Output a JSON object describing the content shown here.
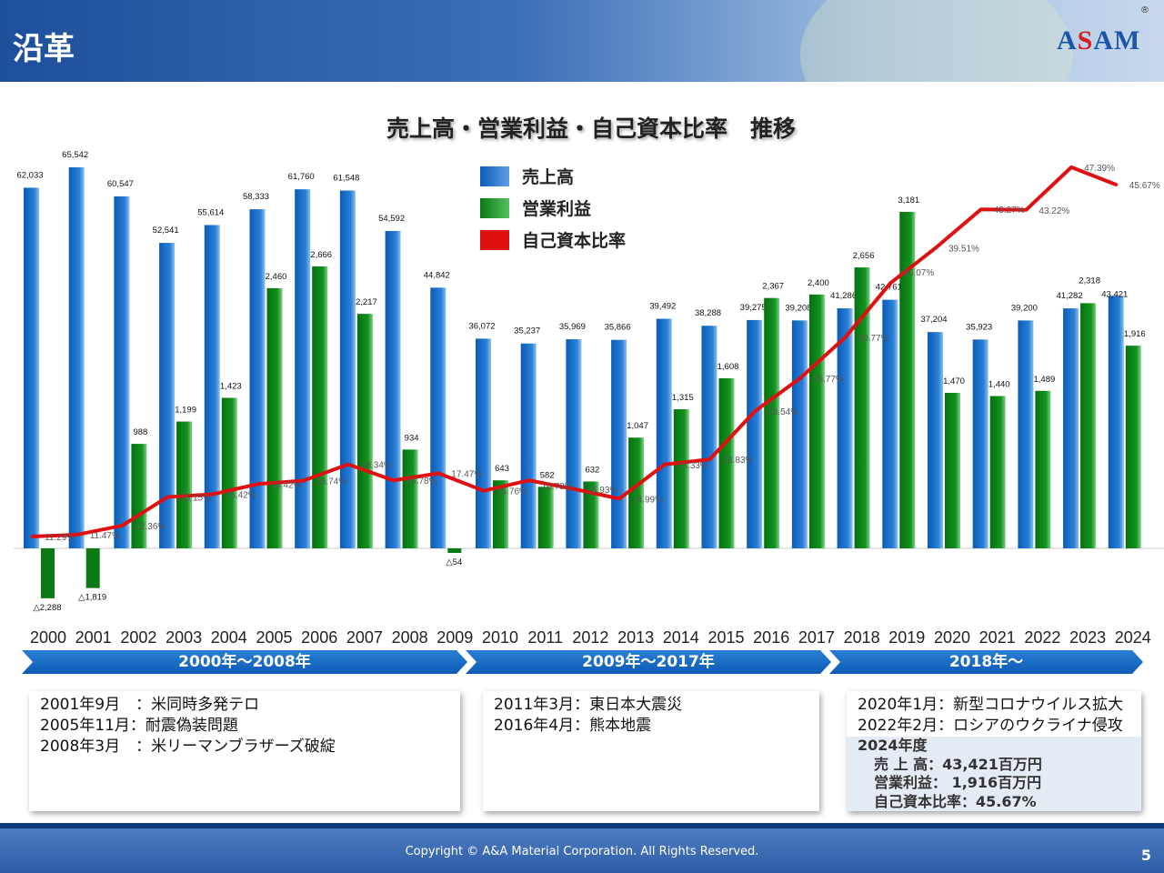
{
  "header": {
    "title": "沿革",
    "logo": "ASAM",
    "registered": "®"
  },
  "chart_data": {
    "type": "bar",
    "title": "売上高・営業利益・自己資本比率　推移",
    "categories": [
      "2000",
      "2001",
      "2002",
      "2003",
      "2004",
      "2005",
      "2006",
      "2007",
      "2008",
      "2009",
      "2010",
      "2011",
      "2012",
      "2013",
      "2014",
      "2015",
      "2016",
      "2017",
      "2018",
      "2019",
      "2020",
      "2021",
      "2022",
      "2023",
      "2024"
    ],
    "legend": {
      "position": "top-center",
      "entries": [
        "売上高",
        "営業利益",
        "自己資本比率"
      ]
    },
    "series": [
      {
        "name": "売上高",
        "type": "bar",
        "color": "#1670c9",
        "unit": "百万円",
        "values": [
          62033,
          65542,
          60547,
          52541,
          55614,
          58333,
          61760,
          61548,
          54592,
          44842,
          36072,
          35237,
          35969,
          35866,
          39492,
          38288,
          39275,
          39208,
          41286,
          42761,
          37204,
          35923,
          39200,
          41282,
          43421
        ]
      },
      {
        "name": "営業利益",
        "type": "bar",
        "color": "#11911e",
        "unit": "百万円",
        "values": [
          -2288,
          -1819,
          988,
          1199,
          1423,
          2460,
          2666,
          2217,
          934,
          -54,
          643,
          582,
          632,
          1047,
          1315,
          1608,
          2367,
          2400,
          2656,
          3181,
          1470,
          1440,
          1489,
          2318,
          1916
        ]
      },
      {
        "name": "自己資本比率",
        "type": "line",
        "color": "#e01010",
        "unit": "%",
        "values": [
          11.29,
          11.47,
          12.36,
          15.15,
          15.42,
          16.42,
          16.74,
          18.34,
          16.78,
          17.47,
          15.76,
          16.78,
          15.93,
          14.99,
          18.33,
          18.83,
          23.54,
          26.77,
          30.77,
          36.07,
          39.51,
          43.27,
          43.22,
          47.39,
          45.67
        ]
      }
    ],
    "negative_prefix": "△",
    "grid": false
  },
  "periods": [
    {
      "label": "2000年～2008年",
      "events": [
        "2001年9月　：米同時多発テロ",
        "2005年11月：耐震偽装問題",
        "2008年3月　：米リーマンブラザーズ破綻"
      ]
    },
    {
      "label": "2009年～2017年",
      "events": [
        "2011年3月：東日本大震災",
        "2016年4月：熊本地震"
      ]
    },
    {
      "label": "2018年～",
      "events": [
        "2020年1月：新型コロナウイルス拡大",
        "2022年2月：ロシアのウクライナ侵攻"
      ],
      "summary": {
        "heading": "2024年度",
        "lines": [
          "売 上 高：43,421百万円",
          "営業利益： 1,916百万円",
          "自己資本比率：45.67%"
        ]
      }
    }
  ],
  "footer": {
    "copyright": "Copyright © A&A Material Corporation. All Rights Reserved.",
    "page": "5"
  }
}
